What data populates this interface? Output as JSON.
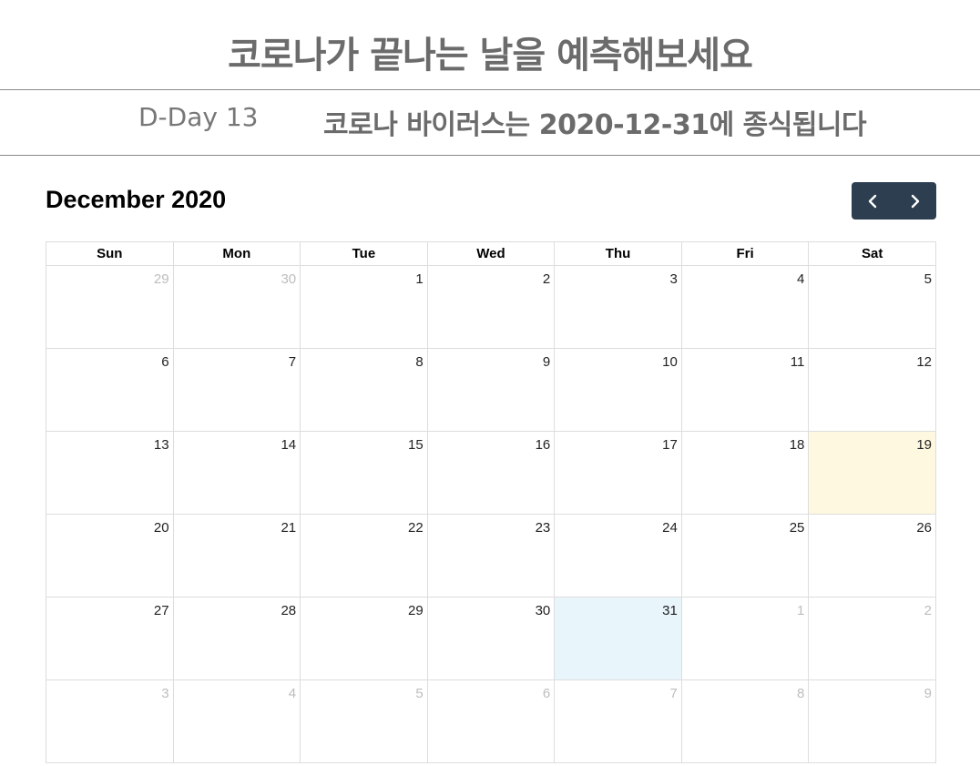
{
  "header": {
    "title": "코로나가 끝나는 날을 예측해보세요"
  },
  "banner": {
    "dday": "D-Day 13",
    "message": "코로나 바이러스는 2020-12-31에 종식됩니다"
  },
  "calendar": {
    "title": "December 2020",
    "prev_icon": "chevron-left-icon",
    "next_icon": "chevron-right-icon",
    "nav_color": "#2c3e50",
    "today_color": "#fdf8df",
    "target_color": "#e8f5fb",
    "weekdays": [
      "Sun",
      "Mon",
      "Tue",
      "Wed",
      "Thu",
      "Fri",
      "Sat"
    ],
    "weeks": [
      [
        {
          "d": "29",
          "other": true
        },
        {
          "d": "30",
          "other": true
        },
        {
          "d": "1"
        },
        {
          "d": "2"
        },
        {
          "d": "3"
        },
        {
          "d": "4"
        },
        {
          "d": "5"
        }
      ],
      [
        {
          "d": "6"
        },
        {
          "d": "7"
        },
        {
          "d": "8"
        },
        {
          "d": "9"
        },
        {
          "d": "10"
        },
        {
          "d": "11"
        },
        {
          "d": "12"
        }
      ],
      [
        {
          "d": "13"
        },
        {
          "d": "14"
        },
        {
          "d": "15"
        },
        {
          "d": "16"
        },
        {
          "d": "17"
        },
        {
          "d": "18"
        },
        {
          "d": "19",
          "today": true
        }
      ],
      [
        {
          "d": "20"
        },
        {
          "d": "21"
        },
        {
          "d": "22"
        },
        {
          "d": "23"
        },
        {
          "d": "24"
        },
        {
          "d": "25"
        },
        {
          "d": "26"
        }
      ],
      [
        {
          "d": "27"
        },
        {
          "d": "28"
        },
        {
          "d": "29"
        },
        {
          "d": "30"
        },
        {
          "d": "31",
          "target": true
        },
        {
          "d": "1",
          "other": true
        },
        {
          "d": "2",
          "other": true
        }
      ],
      [
        {
          "d": "3",
          "other": true
        },
        {
          "d": "4",
          "other": true
        },
        {
          "d": "5",
          "other": true
        },
        {
          "d": "6",
          "other": true
        },
        {
          "d": "7",
          "other": true
        },
        {
          "d": "8",
          "other": true
        },
        {
          "d": "9",
          "other": true
        }
      ]
    ]
  }
}
